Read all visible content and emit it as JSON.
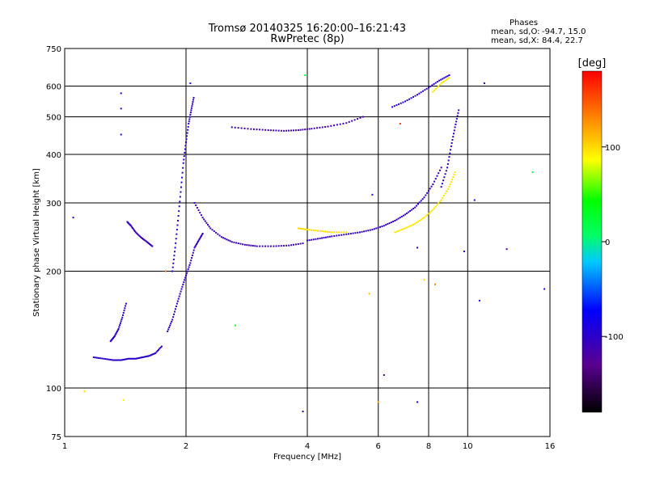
{
  "title": {
    "line1": "Tromsø 20140325 16:20:00–16:21:43",
    "line2": "RwPretec (8p)"
  },
  "stats": {
    "heading": "Phases",
    "row_o_label": "mean, sd,O:",
    "row_o_value": "-94.7, 15.0",
    "row_x_label": "mean, sd,X:",
    "row_x_value": "84.4, 22.7"
  },
  "colorbar": {
    "unit": "[deg]",
    "ticks": [
      "100",
      "0",
      "-100"
    ],
    "tick_values": [
      100,
      0,
      -100
    ],
    "range": [
      -180,
      180
    ]
  },
  "chart_data": {
    "type": "scatter",
    "xlabel": "Frequency [MHz]",
    "ylabel": "Stationary phase Virtual Height [km]",
    "x_scale": "log",
    "y_scale": "log",
    "xlim": [
      1,
      16
    ],
    "ylim": [
      75,
      750
    ],
    "x_ticks": [
      1,
      2,
      4,
      6,
      8,
      10,
      16
    ],
    "x_tick_labels": [
      "1",
      "2",
      "4",
      "6",
      "8",
      "10",
      "16"
    ],
    "y_ticks": [
      75,
      100,
      200,
      300,
      400,
      500,
      600,
      750
    ],
    "y_tick_labels": [
      "75",
      "100",
      "200",
      "300",
      "400",
      "500",
      "600",
      "750"
    ],
    "grid": true,
    "traces": [
      {
        "x": [
          1.18,
          1.25,
          1.32,
          1.38,
          1.44,
          1.5,
          1.56,
          1.62,
          1.68,
          1.74
        ],
        "y": [
          120,
          119,
          118,
          118,
          119,
          119,
          120,
          121,
          123,
          128
        ],
        "phase": -100
      },
      {
        "x": [
          1.3,
          1.33,
          1.36,
          1.39,
          1.42
        ],
        "y": [
          132,
          136,
          142,
          152,
          165
        ],
        "phase": -100
      },
      {
        "x": [
          1.43,
          1.46,
          1.5,
          1.55,
          1.6,
          1.65
        ],
        "y": [
          268,
          262,
          252,
          244,
          238,
          232
        ],
        "phase": -110
      },
      {
        "x": [
          1.85,
          1.88,
          1.91,
          1.94,
          1.97,
          2.0,
          2.03,
          2.06,
          2.09
        ],
        "y": [
          200,
          230,
          270,
          320,
          380,
          430,
          480,
          520,
          560
        ],
        "phase": -100
      },
      {
        "x": [
          1.8,
          1.85,
          1.9,
          1.95,
          2.0,
          2.05,
          2.1,
          2.15,
          2.2
        ],
        "y": [
          140,
          150,
          165,
          180,
          195,
          210,
          230,
          240,
          250
        ],
        "phase": -105
      },
      {
        "x": [
          2.1,
          2.2,
          2.3,
          2.45,
          2.6,
          2.8,
          3.0,
          3.3,
          3.6,
          3.9
        ],
        "y": [
          300,
          275,
          258,
          245,
          238,
          234,
          232,
          232,
          233,
          236
        ],
        "phase": -110
      },
      {
        "x": [
          4.0,
          4.3,
          4.6,
          5.0,
          5.4,
          5.8,
          6.2,
          6.6,
          7.0,
          7.4,
          7.8,
          8.2,
          8.6
        ],
        "y": [
          240,
          243,
          246,
          249,
          252,
          256,
          262,
          270,
          280,
          292,
          310,
          335,
          370
        ],
        "phase": -105
      },
      {
        "x": [
          3.8,
          4.0,
          4.3,
          4.6,
          5.0
        ],
        "y": [
          258,
          256,
          254,
          252,
          252
        ],
        "phase": 100
      },
      {
        "x": [
          6.6,
          7.0,
          7.4,
          7.8,
          8.2,
          8.6,
          9.0,
          9.3
        ],
        "y": [
          252,
          258,
          265,
          275,
          288,
          305,
          330,
          360
        ],
        "phase": 95
      },
      {
        "x": [
          8.6,
          8.9,
          9.1,
          9.3,
          9.5
        ],
        "y": [
          330,
          370,
          420,
          470,
          520
        ],
        "phase": -100
      },
      {
        "x": [
          2.6,
          2.9,
          3.2,
          3.5,
          3.8,
          4.1,
          4.5,
          5.0,
          5.5
        ],
        "y": [
          470,
          465,
          462,
          460,
          462,
          466,
          472,
          482,
          500
        ],
        "phase": -115
      },
      {
        "x": [
          6.5,
          7.0,
          7.5,
          8.0,
          8.5,
          9.0
        ],
        "y": [
          530,
          548,
          570,
          595,
          620,
          640
        ],
        "phase": -100
      },
      {
        "x": [
          8.2,
          8.6,
          9.0
        ],
        "y": [
          580,
          610,
          630
        ],
        "phase": 95
      }
    ],
    "scatter_points": [
      {
        "x": 1.05,
        "y": 275,
        "phase": -95
      },
      {
        "x": 1.38,
        "y": 575,
        "phase": -100
      },
      {
        "x": 1.38,
        "y": 525,
        "phase": -110
      },
      {
        "x": 1.38,
        "y": 450,
        "phase": -100
      },
      {
        "x": 1.4,
        "y": 93,
        "phase": 95
      },
      {
        "x": 1.12,
        "y": 98,
        "phase": 100
      },
      {
        "x": 1.78,
        "y": 200,
        "phase": 140
      },
      {
        "x": 2.05,
        "y": 610,
        "phase": -95
      },
      {
        "x": 2.65,
        "y": 145,
        "phase": 30
      },
      {
        "x": 3.95,
        "y": 640,
        "phase": 20
      },
      {
        "x": 3.9,
        "y": 87,
        "phase": -100
      },
      {
        "x": 5.8,
        "y": 315,
        "phase": -100
      },
      {
        "x": 6.2,
        "y": 108,
        "phase": -120
      },
      {
        "x": 6.0,
        "y": 92,
        "phase": 120
      },
      {
        "x": 7.5,
        "y": 92,
        "phase": -90
      },
      {
        "x": 10.4,
        "y": 305,
        "phase": -90
      },
      {
        "x": 11.0,
        "y": 610,
        "phase": -100
      },
      {
        "x": 10.7,
        "y": 168,
        "phase": -100
      },
      {
        "x": 12.5,
        "y": 228,
        "phase": -110
      },
      {
        "x": 14.5,
        "y": 360,
        "phase": 20
      },
      {
        "x": 15.5,
        "y": 180,
        "phase": -100
      },
      {
        "x": 9.8,
        "y": 225,
        "phase": -90
      },
      {
        "x": 7.5,
        "y": 230,
        "phase": -110
      },
      {
        "x": 7.8,
        "y": 190,
        "phase": 100
      },
      {
        "x": 8.3,
        "y": 185,
        "phase": 130
      },
      {
        "x": 6.8,
        "y": 480,
        "phase": 160
      },
      {
        "x": 5.7,
        "y": 175,
        "phase": 110
      }
    ]
  }
}
